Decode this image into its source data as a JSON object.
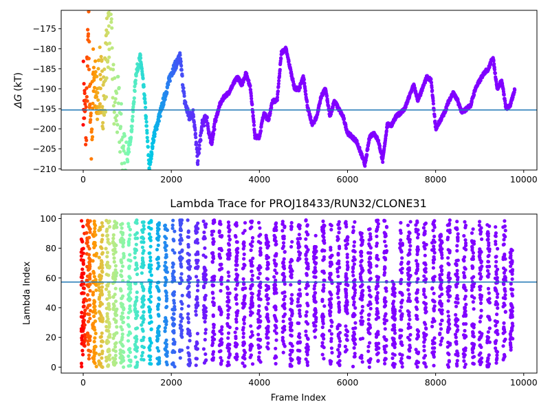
{
  "chart_data": [
    {
      "type": "scatter",
      "title": "",
      "xlabel": "",
      "ylabel_symbol": "ΔG",
      "ylabel_unit": "(kT)",
      "xlim": [
        -500,
        10300
      ],
      "ylim": [
        -210.3,
        -170.4
      ],
      "x_ticks": [
        0,
        2000,
        4000,
        6000,
        8000,
        10000
      ],
      "x_tick_labels": [
        "0",
        "2000",
        "4000",
        "6000",
        "8000",
        "10000"
      ],
      "y_ticks": [
        -175,
        -180,
        -185,
        -190,
        -195,
        -200,
        -205,
        -210
      ],
      "y_tick_labels": [
        "−175",
        "−180",
        "−185",
        "−190",
        "−195",
        "−200",
        "−205",
        "−210"
      ],
      "reference_line_y": -195.3,
      "reference_line_color": "#1f77b4",
      "color_map": "rainbow (red at early frames → violet at late frames)",
      "series": [
        {
          "x": [
            0,
            60,
            120,
            180,
            240,
            300,
            360,
            420,
            480,
            540,
            600,
            700,
            800,
            900,
            1000,
            1100,
            1200,
            1300,
            1400,
            1500,
            1600,
            1700,
            1800,
            1900,
            2000,
            2100,
            2200,
            2300,
            2400,
            2500,
            2600,
            2700,
            2800,
            2900,
            3000,
            3100,
            3200,
            3300,
            3400,
            3500,
            3600,
            3700,
            3800,
            3900,
            4000,
            4100,
            4200,
            4300,
            4400,
            4500,
            4600,
            4700,
            4800,
            4900,
            5000,
            5100,
            5200,
            5300,
            5400,
            5500,
            5600,
            5700,
            5800,
            5900,
            6000,
            6100,
            6200,
            6300,
            6400,
            6500,
            6600,
            6700,
            6800,
            6900,
            7000,
            7100,
            7200,
            7300,
            7400,
            7500,
            7600,
            7700,
            7800,
            7900,
            8000,
            8100,
            8200,
            8300,
            8400,
            8500,
            8600,
            8700,
            8800,
            8900,
            9000,
            9100,
            9200,
            9300,
            9400,
            9500,
            9600,
            9700,
            9800
          ],
          "y": [
            -190,
            -200,
            -176,
            -205,
            -183,
            -196,
            -188,
            -190,
            -192,
            -180,
            -172,
            -194,
            -196,
            -205,
            -208,
            -200,
            -186,
            -182,
            -193,
            -210,
            -202,
            -198,
            -194,
            -190,
            -186,
            -184,
            -182,
            -193,
            -197,
            -196,
            -208,
            -199,
            -197,
            -204,
            -198,
            -194,
            -192,
            -191,
            -189,
            -187,
            -189,
            -186,
            -190,
            -202,
            -202,
            -196,
            -198,
            -193,
            -193,
            -181,
            -180,
            -185,
            -190,
            -190,
            -187,
            -195,
            -199,
            -197,
            -192,
            -190,
            -197,
            -193,
            -195,
            -197,
            -201,
            -202,
            -203,
            -206,
            -209,
            -202,
            -201,
            -203,
            -208,
            -199,
            -199,
            -197,
            -196,
            -195,
            -192,
            -189,
            -193,
            -190,
            -187,
            -188,
            -200,
            -198,
            -196,
            -193,
            -191,
            -193,
            -196,
            -195,
            -194,
            -190,
            -188,
            -186,
            -185,
            -182,
            -190,
            -188,
            -195,
            -194,
            -190
          ]
        }
      ]
    },
    {
      "type": "scatter",
      "title": "Lambda Trace for PROJ18433/RUN32/CLONE31",
      "xlabel": "Frame Index",
      "ylabel": "Lambda Index",
      "xlim": [
        -500,
        10300
      ],
      "ylim": [
        -4,
        103
      ],
      "x_ticks": [
        0,
        2000,
        4000,
        6000,
        8000,
        10000
      ],
      "x_tick_labels": [
        "0",
        "2000",
        "4000",
        "6000",
        "8000",
        "10000"
      ],
      "y_ticks": [
        0,
        20,
        40,
        60,
        80,
        100
      ],
      "y_tick_labels": [
        "0",
        "20",
        "40",
        "60",
        "80",
        "100"
      ],
      "reference_line_y": 57.3,
      "reference_line_color": "#1f77b4",
      "lambda_range": [
        0,
        99
      ],
      "frame_range": [
        0,
        9800
      ],
      "color_map": "rainbow (red at early frames → violet at late frames)",
      "series": [
        {
          "x_centers": [
            0,
            120,
            260,
            400,
            560,
            720,
            880,
            1050,
            1200,
            1350,
            1520,
            1700,
            1880,
            2050,
            2220,
            2400,
            2580,
            2760,
            2950,
            3120,
            3300,
            3480,
            3650,
            3820,
            4000,
            4180,
            4360,
            4550,
            4720,
            4900,
            5080,
            5260,
            5450,
            5620,
            5800,
            5980,
            6150,
            6320,
            6500,
            6680,
            6860,
            7050,
            7220,
            7400,
            7580,
            7760,
            7950,
            8120,
            8300,
            8480,
            8660,
            8850,
            9020,
            9200,
            9380,
            9560,
            9720
          ],
          "lambda_min": [
            0,
            0,
            0,
            0,
            0,
            0,
            0,
            0,
            0,
            0,
            0,
            0,
            0,
            0,
            0,
            0,
            0,
            0,
            0,
            2,
            0,
            5,
            0,
            2,
            0,
            10,
            0,
            3,
            0,
            2,
            0,
            20,
            0,
            2,
            0,
            10,
            0,
            0,
            0,
            2,
            0,
            0,
            0,
            5,
            0,
            0,
            0,
            15,
            0,
            0,
            0,
            2,
            0,
            0,
            0,
            5,
            10
          ],
          "lambda_max": [
            99,
            99,
            99,
            99,
            99,
            99,
            99,
            99,
            99,
            99,
            99,
            99,
            99,
            99,
            99,
            99,
            99,
            99,
            99,
            98,
            99,
            99,
            99,
            99,
            99,
            90,
            99,
            99,
            99,
            99,
            99,
            95,
            99,
            99,
            99,
            99,
            99,
            99,
            95,
            99,
            99,
            60,
            99,
            99,
            99,
            99,
            99,
            90,
            99,
            99,
            99,
            99,
            99,
            99,
            99,
            99,
            80
          ]
        }
      ]
    }
  ]
}
